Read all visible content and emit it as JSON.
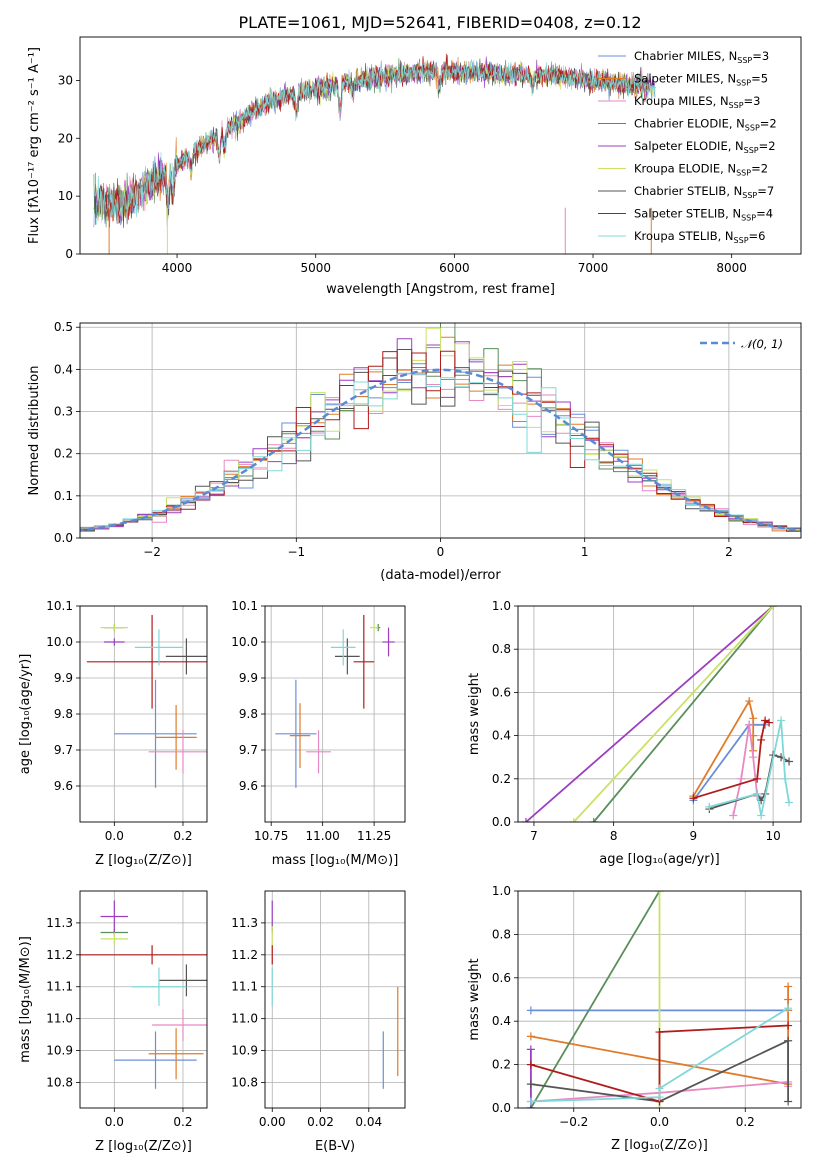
{
  "figure_title": "PLATE=1061, MJD=52641, FIBERID=0408, z=0.12",
  "colors": [
    "#6a8fd8",
    "#e07b2b",
    "#e78ac3",
    "#5a8f5a",
    "#9b3fbf",
    "#c9e265",
    "#555555",
    "#b01c1c",
    "#7fd8d8"
  ],
  "chart_data": [
    {
      "id": "spectrum",
      "type": "line",
      "title": "PLATE=1061, MJD=52641, FIBERID=0408, z=0.12",
      "xlabel": "wavelength [Angstrom, rest frame]",
      "ylabel": "Flux [fλ10⁻¹⁷ erg cm⁻² s⁻¹ A⁻¹]",
      "xlim": [
        3300,
        8500
      ],
      "ylim": [
        0,
        37.5
      ],
      "xticks": [
        4000,
        5000,
        6000,
        7000,
        8000
      ],
      "yticks": [
        0,
        10,
        20,
        30
      ],
      "grid": false,
      "legend": "right",
      "continuum_x": [
        3400,
        3600,
        3800,
        4000,
        4200,
        4400,
        4600,
        4800,
        5000,
        5200,
        5400,
        5600,
        5800,
        6000,
        6200,
        6400,
        6600,
        6800,
        7000,
        7200,
        7400
      ],
      "continuum_y": [
        9.5,
        8.5,
        12.0,
        15.5,
        19.0,
        22.0,
        25.5,
        27.5,
        28.5,
        29.5,
        30.5,
        31.0,
        31.5,
        31.5,
        31.5,
        31.0,
        31.0,
        30.5,
        30.0,
        29.5,
        29.0
      ],
      "series": [
        {
          "name": "Chabrier MILES, N_SSP=3",
          "label_main": "Chabrier MILES, N",
          "label_sub": "SSP",
          "label_tail": "=3"
        },
        {
          "name": "Salpeter MILES, N_SSP=5",
          "label_main": "Salpeter MILES, N",
          "label_sub": "SSP",
          "label_tail": "=5"
        },
        {
          "name": "Kroupa MILES, N_SSP=3",
          "label_main": "Kroupa MILES, N",
          "label_sub": "SSP",
          "label_tail": "=3"
        },
        {
          "name": "Chabrier ELODIE, N_SSP=2",
          "label_main": "Chabrier ELODIE, N",
          "label_sub": "SSP",
          "label_tail": "=2"
        },
        {
          "name": "Salpeter ELODIE, N_SSP=2",
          "label_main": "Salpeter ELODIE, N",
          "label_sub": "SSP",
          "label_tail": "=2"
        },
        {
          "name": "Kroupa ELODIE, N_SSP=2",
          "label_main": "Kroupa ELODIE, N",
          "label_sub": "SSP",
          "label_tail": "=2"
        },
        {
          "name": "Chabrier STELIB, N_SSP=7",
          "label_main": "Chabrier STELIB, N",
          "label_sub": "SSP",
          "label_tail": "=7"
        },
        {
          "name": "Salpeter STELIB, N_SSP=4",
          "label_main": "Salpeter STELIB, N",
          "label_sub": "SSP",
          "label_tail": "=4"
        },
        {
          "name": "Kroupa STELIB, N_SSP=6",
          "label_main": "Kroupa STELIB, N",
          "label_sub": "SSP",
          "label_tail": "=6"
        }
      ]
    },
    {
      "id": "residuals",
      "type": "histogram",
      "xlabel": "(data-model)/error",
      "ylabel": "Normed distribution",
      "xlim": [
        -2.5,
        2.5
      ],
      "ylim": [
        0,
        0.51
      ],
      "xticks": [
        -2,
        -1,
        0,
        1,
        2
      ],
      "yticks": [
        0.0,
        0.1,
        0.2,
        0.3,
        0.4,
        0.5
      ],
      "grid": true,
      "legend": "top-right",
      "gaussian_label": "𝒩(0, 1)",
      "bin_width": 0.1
    },
    {
      "id": "age_vs_Z",
      "type": "errorbar",
      "xlabel": "Z [log₁₀(Z/Z⊙)]",
      "ylabel": "age  [log₁₀(age/yr)]",
      "xlim": [
        -0.1,
        0.27
      ],
      "ylim": [
        9.5,
        10.1
      ],
      "xticks": [
        0.0,
        0.2
      ],
      "yticks": [
        9.6,
        9.7,
        9.8,
        9.9,
        10.0,
        10.1
      ],
      "grid": true,
      "points": [
        {
          "x": 0.12,
          "y": 9.745,
          "xerr": 0.12,
          "yerr": 0.15
        },
        {
          "x": 0.18,
          "y": 9.735,
          "xerr": 0.06,
          "yerr": 0.09
        },
        {
          "x": 0.2,
          "y": 9.695,
          "xerr": 0.1,
          "yerr": 0.06
        },
        {
          "x": 0.0,
          "y": 10.04,
          "xerr": 0.03,
          "yerr": 0.01
        },
        {
          "x": 0.0,
          "y": 10.0,
          "xerr": 0.03,
          "yerr": 0.01
        },
        {
          "x": 0.0,
          "y": 10.04,
          "xerr": 0.04,
          "yerr": 0.01
        },
        {
          "x": 0.21,
          "y": 9.96,
          "xerr": 0.06,
          "yerr": 0.05
        },
        {
          "x": 0.11,
          "y": 9.945,
          "xerr": 0.19,
          "yerr": 0.13
        },
        {
          "x": 0.13,
          "y": 9.985,
          "xerr": 0.07,
          "yerr": 0.05
        }
      ]
    },
    {
      "id": "age_vs_mass",
      "type": "errorbar",
      "xlabel": "mass [log₁₀(M/M⊙)]",
      "ylabel": "",
      "xlim": [
        10.72,
        11.4
      ],
      "ylim": [
        9.5,
        10.1
      ],
      "xticks": [
        10.75,
        11.0,
        11.25
      ],
      "yticks": [
        9.6,
        9.7,
        9.8,
        9.9,
        10.0,
        10.1
      ],
      "grid": true,
      "points": [
        {
          "x": 10.87,
          "y": 9.745,
          "xerr": 0.1,
          "yerr": 0.15
        },
        {
          "x": 10.89,
          "y": 9.74,
          "xerr": 0.05,
          "yerr": 0.09
        },
        {
          "x": 10.98,
          "y": 9.695,
          "xerr": 0.06,
          "yerr": 0.06
        },
        {
          "x": 11.27,
          "y": 10.04,
          "xerr": 0.01,
          "yerr": 0.01
        },
        {
          "x": 11.32,
          "y": 10.0,
          "xerr": 0.03,
          "yerr": 0.04
        },
        {
          "x": 11.25,
          "y": 10.04,
          "xerr": 0.02,
          "yerr": 0.01
        },
        {
          "x": 11.12,
          "y": 9.96,
          "xerr": 0.06,
          "yerr": 0.05
        },
        {
          "x": 11.2,
          "y": 9.945,
          "xerr": 0.05,
          "yerr": 0.13
        },
        {
          "x": 11.1,
          "y": 9.985,
          "xerr": 0.06,
          "yerr": 0.05
        }
      ]
    },
    {
      "id": "weight_vs_age",
      "type": "line",
      "xlabel": "age  [log₁₀(age/yr)]",
      "ylabel": "mass weight",
      "xlim": [
        6.8,
        10.35
      ],
      "ylim": [
        0,
        1.0
      ],
      "xticks": [
        7,
        8,
        9,
        10
      ],
      "yticks": [
        0.0,
        0.2,
        0.4,
        0.6,
        0.8,
        1.0
      ],
      "grid": true,
      "series": [
        {
          "x": [
            9.0,
            9.7,
            9.75,
            9.9
          ],
          "y": [
            0.1,
            0.45,
            0.45,
            0.45
          ]
        },
        {
          "x": [
            9.0,
            9.7,
            9.75,
            9.75,
            9.75
          ],
          "y": [
            0.12,
            0.56,
            0.48,
            0.4,
            0.33
          ]
        },
        {
          "x": [
            9.5,
            9.6,
            9.7,
            9.75,
            9.8
          ],
          "y": [
            0.03,
            0.2,
            0.45,
            0.3,
            0.12
          ]
        },
        {
          "x": [
            7.75,
            10.0
          ],
          "y": [
            0.0,
            1.0
          ]
        },
        {
          "x": [
            6.9,
            10.0
          ],
          "y": [
            0.0,
            1.0
          ]
        },
        {
          "x": [
            7.5,
            10.0
          ],
          "y": [
            0.0,
            1.0
          ]
        },
        {
          "x": [
            9.2,
            9.8,
            9.85,
            9.9,
            10.0,
            10.1,
            10.2
          ],
          "y": [
            0.06,
            0.13,
            0.1,
            0.13,
            0.31,
            0.3,
            0.28
          ]
        },
        {
          "x": [
            9.0,
            9.8,
            9.85,
            9.9,
            9.95
          ],
          "y": [
            0.11,
            0.2,
            0.38,
            0.47,
            0.46
          ]
        },
        {
          "x": [
            9.2,
            9.8,
            9.85,
            10.1,
            10.15,
            10.2
          ],
          "y": [
            0.07,
            0.13,
            0.03,
            0.47,
            0.2,
            0.09
          ]
        }
      ]
    },
    {
      "id": "mass_vs_Z",
      "type": "errorbar",
      "xlabel": "Z [log₁₀(Z/Z⊙)]",
      "ylabel": "mass [log₁₀(M/M⊙)]",
      "xlim": [
        -0.1,
        0.27
      ],
      "ylim": [
        10.72,
        11.4
      ],
      "xticks": [
        0.0,
        0.2
      ],
      "yticks": [
        10.8,
        10.9,
        11.0,
        11.1,
        11.2,
        11.3
      ],
      "grid": true,
      "points": [
        {
          "x": 0.12,
          "y": 10.87,
          "xerr": 0.12,
          "yerr": 0.09
        },
        {
          "x": 0.18,
          "y": 10.89,
          "xerr": 0.08,
          "yerr": 0.08
        },
        {
          "x": 0.2,
          "y": 10.98,
          "xerr": 0.09,
          "yerr": 0.05
        },
        {
          "x": 0.0,
          "y": 11.27,
          "xerr": 0.04,
          "yerr": 0.01
        },
        {
          "x": 0.0,
          "y": 11.32,
          "xerr": 0.04,
          "yerr": 0.05
        },
        {
          "x": 0.0,
          "y": 11.25,
          "xerr": 0.04,
          "yerr": 0.02
        },
        {
          "x": 0.21,
          "y": 11.12,
          "xerr": 0.08,
          "yerr": 0.05
        },
        {
          "x": 0.11,
          "y": 11.2,
          "xerr": 0.21,
          "yerr": 0.03
        },
        {
          "x": 0.13,
          "y": 11.1,
          "xerr": 0.08,
          "yerr": 0.06
        }
      ]
    },
    {
      "id": "mass_vs_ebv",
      "type": "errorbar",
      "xlabel": "E(B-V)",
      "ylabel": "",
      "xlim": [
        -0.003,
        0.055
      ],
      "ylim": [
        10.72,
        11.4
      ],
      "xticks": [
        0.0,
        0.02,
        0.04
      ],
      "yticks": [
        10.8,
        10.9,
        11.0,
        11.1,
        11.2,
        11.3
      ],
      "grid": true,
      "points": [
        {
          "x": 0.046,
          "y": 10.87,
          "xerr": 0,
          "yerr": 0.09
        },
        {
          "x": 0.052,
          "y": 10.96,
          "xerr": 0,
          "yerr": 0.14
        },
        {
          "x": 0.0,
          "y": 11.32,
          "xerr": 0,
          "yerr": 0.05
        },
        {
          "x": 0.0,
          "y": 11.26,
          "xerr": 0,
          "yerr": 0.03
        },
        {
          "x": 0.0,
          "y": 11.2,
          "xerr": 0,
          "yerr": 0.03
        },
        {
          "x": 0.0,
          "y": 11.1,
          "xerr": 0,
          "yerr": 0.06
        }
      ],
      "point_colors": [
        0,
        1,
        4,
        5,
        7,
        8
      ]
    },
    {
      "id": "weight_vs_Z",
      "type": "line",
      "xlabel": "Z [log₁₀(Z/Z⊙)]",
      "ylabel": "mass weight",
      "xlim": [
        -0.33,
        0.33
      ],
      "ylim": [
        0,
        1.0
      ],
      "xticks": [
        -0.2,
        0.0,
        0.2
      ],
      "yticks": [
        0.0,
        0.2,
        0.4,
        0.6,
        0.8,
        1.0
      ],
      "grid": true,
      "series": [
        {
          "x": [
            -0.3,
            0.0,
            0.3
          ],
          "y": [
            0.45,
            0.45,
            0.45
          ]
        },
        {
          "x": [
            -0.3,
            0.3,
            0.3,
            0.3,
            0.3
          ],
          "y": [
            0.33,
            0.11,
            0.56,
            0.5,
            0.45
          ]
        },
        {
          "x": [
            -0.3,
            0.0,
            0.3,
            0.3
          ],
          "y": [
            0.03,
            0.07,
            0.12,
            0.1
          ]
        },
        {
          "x": [
            -0.3,
            0.0
          ],
          "y": [
            0.0,
            1.0
          ]
        },
        {
          "x": [
            -0.3,
            -0.3
          ],
          "y": [
            0.0,
            0.27
          ]
        },
        {
          "x": [
            0.0,
            0.0
          ],
          "y": [
            0.0,
            1.0
          ]
        },
        {
          "x": [
            -0.3,
            0.0,
            0.3,
            0.3
          ],
          "y": [
            0.11,
            0.03,
            0.31,
            0.03
          ]
        },
        {
          "x": [
            -0.3,
            0.0,
            0.0,
            0.3
          ],
          "y": [
            0.2,
            0.03,
            0.35,
            0.38
          ]
        },
        {
          "x": [
            -0.3,
            0.0,
            0.0,
            0.3
          ],
          "y": [
            0.03,
            0.05,
            0.09,
            0.46
          ]
        }
      ]
    }
  ]
}
